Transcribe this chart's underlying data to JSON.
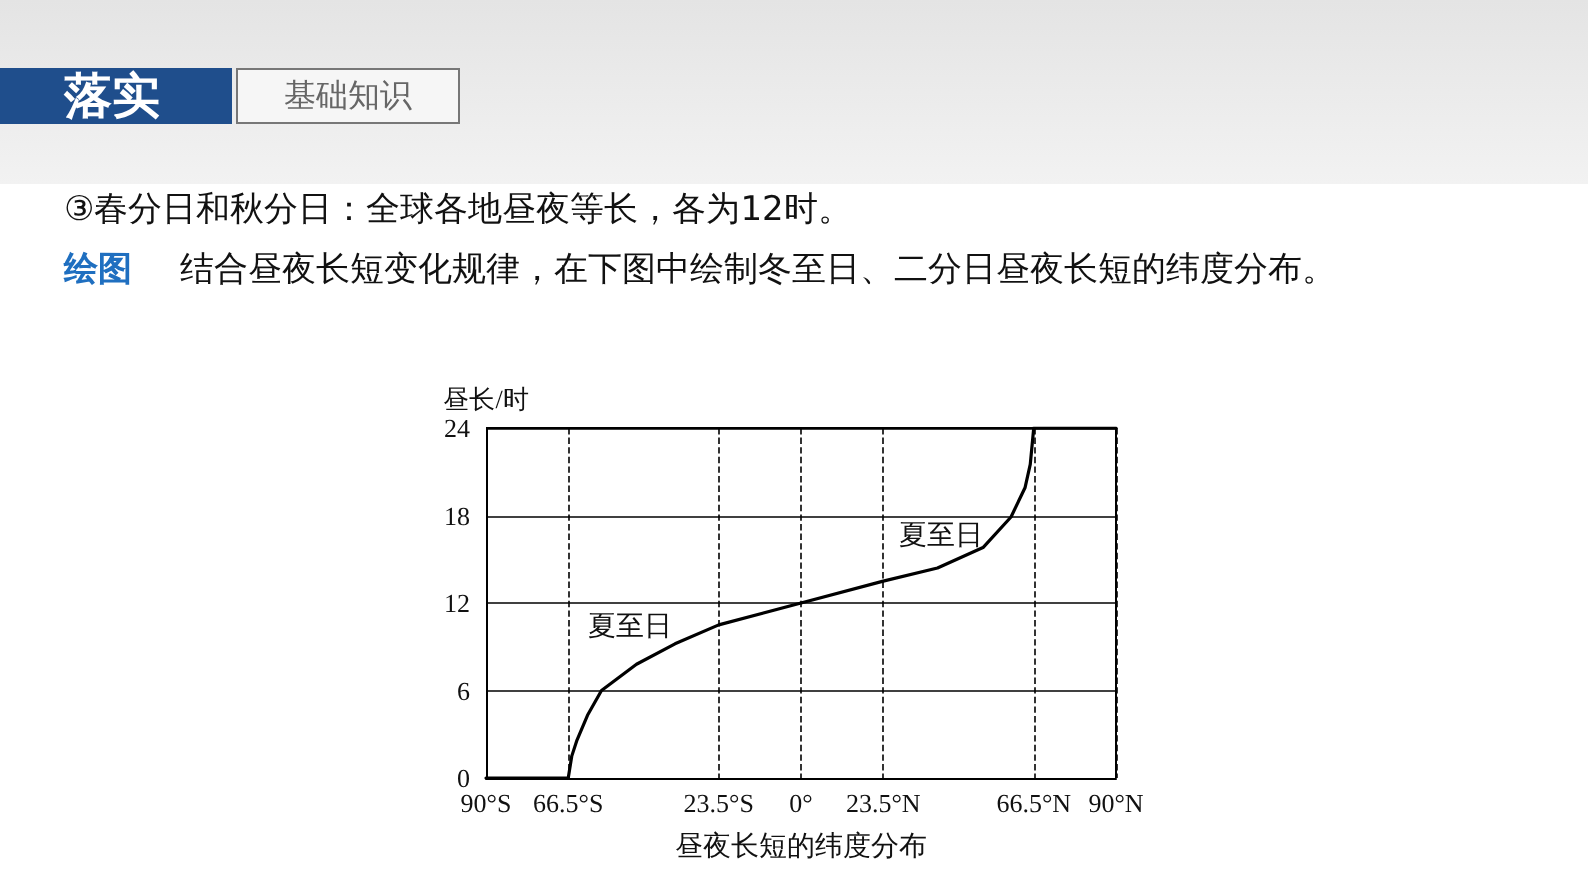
{
  "chart_data": {
    "type": "line",
    "xlabel": "昼夜长短的纬度分布",
    "ylabel": "昼长/时",
    "annotations": [
      "落实",
      "基础知识",
      "③春分日和秋分日：全球各地昼夜等长，各为12时。",
      "绘图",
      "结合昼夜长短变化规律，在下图中绘制冬至日、二分日昼夜长短的纬度分布。",
      "夏至日",
      "夏至日"
    ],
    "series": [
      {
        "color": "#000000",
        "x": [
          -90,
          -66.5,
          -65.5,
          -64,
          -61,
          -57,
          -47,
          -36,
          -23.5,
          0,
          23.5,
          39,
          52,
          60,
          64,
          65.5,
          66.5,
          90
        ],
        "values": [
          0,
          0,
          1.5,
          2.6,
          4.3,
          6,
          7.8,
          9.2,
          10.5,
          12,
          13.5,
          14.4,
          15.8,
          17.9,
          19.9,
          21.5,
          24,
          24
        ]
      }
    ],
    "xlim": [
      -90,
      90
    ],
    "xticks": [
      {
        "value": -90,
        "label": "90°S"
      },
      {
        "value": -66.5,
        "label": "66.5°S"
      },
      {
        "value": -23.5,
        "label": "23.5°S"
      },
      {
        "value": 0,
        "label": "0°"
      },
      {
        "value": 23.5,
        "label": "23.5°N"
      },
      {
        "value": 66.5,
        "label": "66.5°N"
      },
      {
        "value": 90,
        "label": "90°N"
      }
    ],
    "ylim": [
      0,
      24
    ],
    "yticks": [
      0,
      6,
      12,
      18,
      24
    ],
    "grid": true,
    "marker": "none",
    "line_style": "solid"
  }
}
